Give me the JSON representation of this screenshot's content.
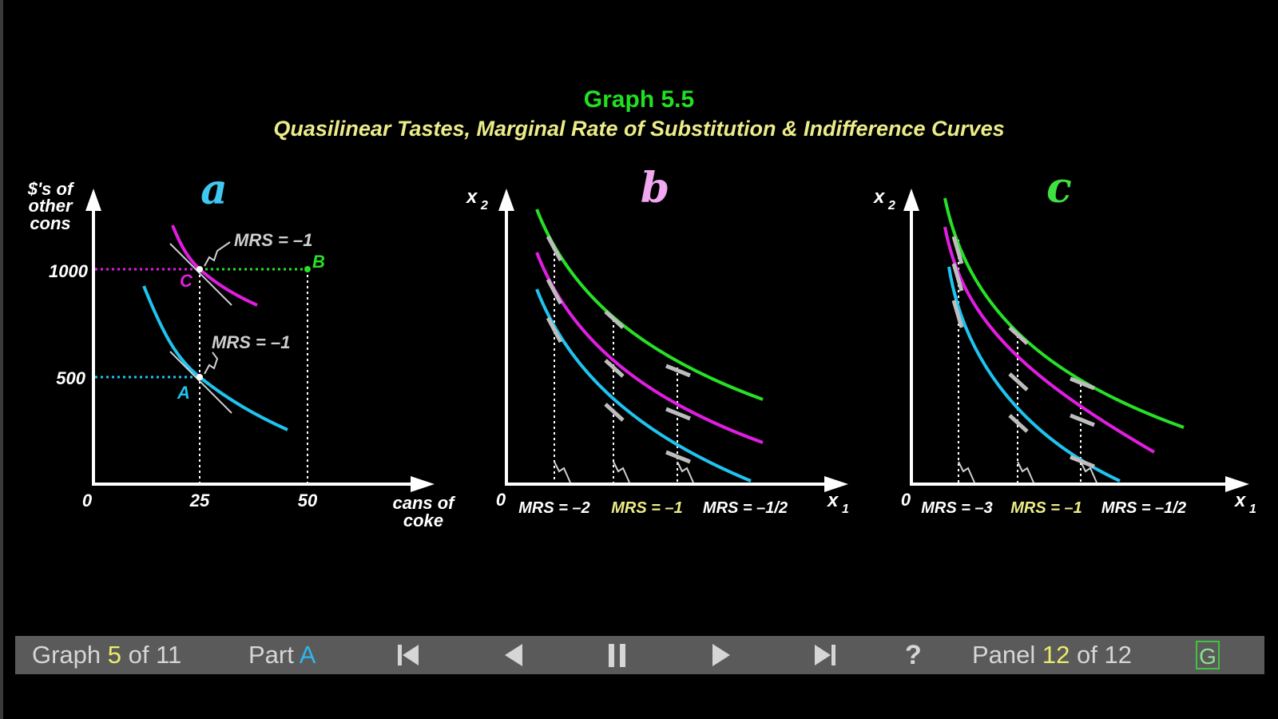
{
  "title": "Graph 5.5",
  "subtitle": "Quasilinear Tastes, Marginal Rate of Substitution & Indifference Curves",
  "colors": {
    "background": "#000000",
    "title": "#21e021",
    "subtitle": "#ecec8a",
    "cyan": "#1fc4f0",
    "magenta": "#e21de2",
    "green": "#27e027",
    "panel_a_letter": "#3fc9f2",
    "panel_b_letter": "#f0a8f0",
    "panel_c_letter": "#3fe03f",
    "navbar": "#5a5a5a"
  },
  "panels": {
    "a": {
      "letter": "a",
      "ylabel_lines": [
        "$'s of",
        "other",
        "cons"
      ],
      "xlabel_lines": [
        "cans of",
        "coke"
      ],
      "origin": "0",
      "xticks": [
        "25",
        "50"
      ],
      "yticks": [
        "1000",
        "500"
      ],
      "points": {
        "A": "A",
        "B": "B",
        "C": "C"
      },
      "mrs_upper": "MRS = –1",
      "mrs_lower": "MRS = –1"
    },
    "b": {
      "letter": "b",
      "ylabel": "x",
      "ysub": "2",
      "xlabel": "x",
      "xsub": "1",
      "origin": "0",
      "mrs": [
        "MRS = –2",
        "MRS = –1",
        "MRS = –1/2"
      ]
    },
    "c": {
      "letter": "c",
      "ylabel": "x",
      "ysub": "2",
      "xlabel": "x",
      "xsub": "1",
      "origin": "0",
      "mrs": [
        "MRS = –3",
        "MRS = –1",
        "MRS = –1/2"
      ]
    }
  },
  "chart_data": [
    {
      "type": "line",
      "panel": "a",
      "xlabel": "cans of coke",
      "ylabel": "$'s of other cons",
      "xticks": [
        0,
        25,
        50
      ],
      "yticks": [
        500,
        1000
      ],
      "points": [
        {
          "name": "A",
          "x": 25,
          "y": 500
        },
        {
          "name": "B",
          "x": 50,
          "y": 1000
        },
        {
          "name": "C",
          "x": 25,
          "y": 1000
        }
      ],
      "annotations": [
        "MRS = –1",
        "MRS = –1"
      ],
      "series": [
        {
          "color": "#1fc4f0",
          "x": [
            12,
            18,
            25,
            33,
            45
          ],
          "y": [
            920,
            680,
            500,
            380,
            260
          ]
        },
        {
          "color": "#e21de2",
          "x": [
            18,
            21,
            25,
            30,
            38
          ],
          "y": [
            1200,
            1100,
            1000,
            920,
            840
          ]
        }
      ]
    },
    {
      "type": "line",
      "panel": "b",
      "xlabel": "x1",
      "ylabel": "x2",
      "annotations": [
        "MRS = –2",
        "MRS = –1",
        "MRS = –1/2"
      ]
    },
    {
      "type": "line",
      "panel": "c",
      "xlabel": "x1",
      "ylabel": "x2",
      "annotations": [
        "MRS = –3",
        "MRS = –1",
        "MRS = –1/2"
      ]
    }
  ],
  "navbar": {
    "graph_prefix": "Graph ",
    "graph_num": "5",
    "graph_suffix": " of 11",
    "part_prefix": "Part ",
    "part_letter": "A",
    "help": "?",
    "panel_prefix": "Panel ",
    "panel_num": "12",
    "panel_suffix": " of 12",
    "g_label": "G"
  }
}
